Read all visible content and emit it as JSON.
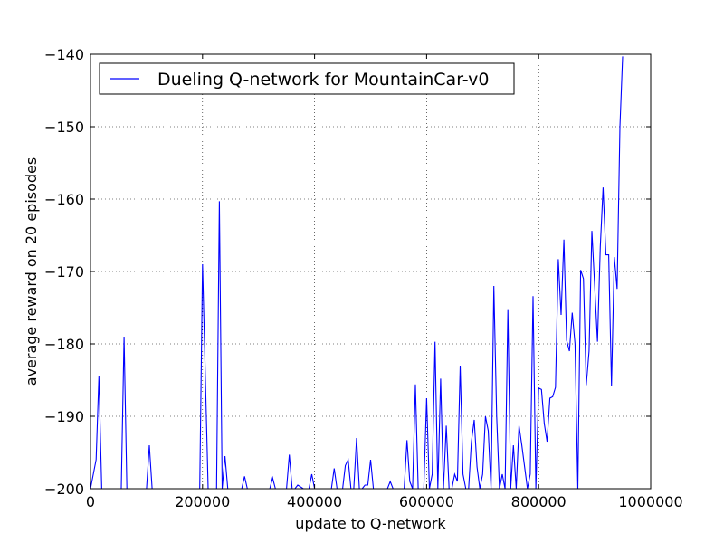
{
  "chart_data": {
    "type": "line",
    "xlabel": "update to Q-network",
    "ylabel": "average reward on 20 episodes",
    "xlim": [
      0,
      1000000
    ],
    "ylim": [
      -200,
      -140
    ],
    "grid": true,
    "legend_position": "top-left",
    "xticks": [
      0,
      200000,
      400000,
      600000,
      800000,
      1000000
    ],
    "xtick_labels": [
      "0",
      "200000",
      "400000",
      "600000",
      "800000",
      "1000000"
    ],
    "yticks": [
      -200,
      -190,
      -180,
      -170,
      -160,
      -150,
      -140
    ],
    "ytick_labels": [
      "−200",
      "−190",
      "−180",
      "−170",
      "−160",
      "−150",
      "−140"
    ],
    "series": [
      {
        "name": "Dueling Q-network for MountainCar-v0",
        "color": "#0000ff",
        "x": [
          0,
          10000,
          15000,
          20000,
          25000,
          35000,
          45000,
          55000,
          60000,
          65000,
          75000,
          85000,
          95000,
          100000,
          105000,
          110000,
          120000,
          130000,
          140000,
          150000,
          160000,
          170000,
          180000,
          190000,
          195000,
          200000,
          210000,
          220000,
          225000,
          230000,
          235000,
          240000,
          245000,
          250000,
          260000,
          270000,
          275000,
          280000,
          290000,
          300000,
          310000,
          320000,
          325000,
          330000,
          340000,
          350000,
          355000,
          360000,
          365000,
          370000,
          380000,
          390000,
          395000,
          400000,
          410000,
          420000,
          430000,
          435000,
          440000,
          450000,
          455000,
          460000,
          465000,
          470000,
          475000,
          480000,
          485000,
          490000,
          495000,
          500000,
          505000,
          510000,
          520000,
          530000,
          535000,
          540000,
          550000,
          560000,
          565000,
          570000,
          575000,
          580000,
          585000,
          590000,
          595000,
          600000,
          605000,
          610000,
          615000,
          620000,
          625000,
          630000,
          635000,
          640000,
          645000,
          650000,
          655000,
          660000,
          665000,
          670000,
          675000,
          680000,
          685000,
          690000,
          695000,
          700000,
          705000,
          710000,
          715000,
          720000,
          725000,
          730000,
          735000,
          740000,
          745000,
          750000,
          755000,
          760000,
          765000,
          770000,
          775000,
          780000,
          785000,
          790000,
          795000,
          800000,
          805000,
          810000,
          815000,
          820000,
          825000,
          830000,
          835000,
          840000,
          845000,
          850000,
          855000,
          860000,
          865000,
          870000,
          875000,
          880000,
          885000,
          890000,
          895000,
          900000,
          905000,
          910000,
          915000,
          920000,
          925000,
          930000,
          935000,
          940000,
          945000,
          950000
        ],
        "y": [
          -200,
          -196,
          -184.5,
          -200,
          -200,
          -200,
          -200,
          -200,
          -179,
          -200,
          -200,
          -200,
          -200,
          -200,
          -194,
          -200,
          -200,
          -200,
          -200,
          -200,
          -200,
          -200,
          -200,
          -200,
          -200,
          -169,
          -200,
          -200,
          -200,
          -160.3,
          -200,
          -195.5,
          -200,
          -200,
          -200,
          -200,
          -198.3,
          -200,
          -200,
          -200,
          -200,
          -200,
          -198.5,
          -200,
          -200,
          -200,
          -195.3,
          -200,
          -200,
          -199.5,
          -200,
          -200,
          -198,
          -200,
          -200,
          -200,
          -200,
          -197.2,
          -200,
          -200,
          -196.8,
          -196,
          -200,
          -200,
          -193,
          -200,
          -200,
          -199.5,
          -199.5,
          -196,
          -200,
          -200,
          -200,
          -200,
          -199,
          -200,
          -200,
          -200,
          -193.3,
          -199,
          -200,
          -185.6,
          -200,
          -200,
          -200,
          -187.5,
          -200,
          -198,
          -179.7,
          -200,
          -184.8,
          -200,
          -191.3,
          -200,
          -200,
          -198,
          -199,
          -183,
          -198,
          -200,
          -200,
          -193.5,
          -190.5,
          -197,
          -200,
          -198,
          -190,
          -192,
          -200,
          -172,
          -190,
          -200,
          -198,
          -200,
          -175.2,
          -200,
          -194,
          -200,
          -191.3,
          -194,
          -197,
          -200,
          -198,
          -173.4,
          -200,
          -186.1,
          -186.3,
          -191,
          -193.5,
          -187.5,
          -187.3,
          -186,
          -168.3,
          -176,
          -165.6,
          -179.5,
          -181,
          -175.7,
          -180,
          -200,
          -169.8,
          -171,
          -185.7,
          -181,
          -164.4,
          -172,
          -179.7,
          -166.6,
          -158.4,
          -167.7,
          -167.7,
          -185.8,
          -168,
          -172.4,
          -150,
          -140.3
        ]
      }
    ]
  }
}
